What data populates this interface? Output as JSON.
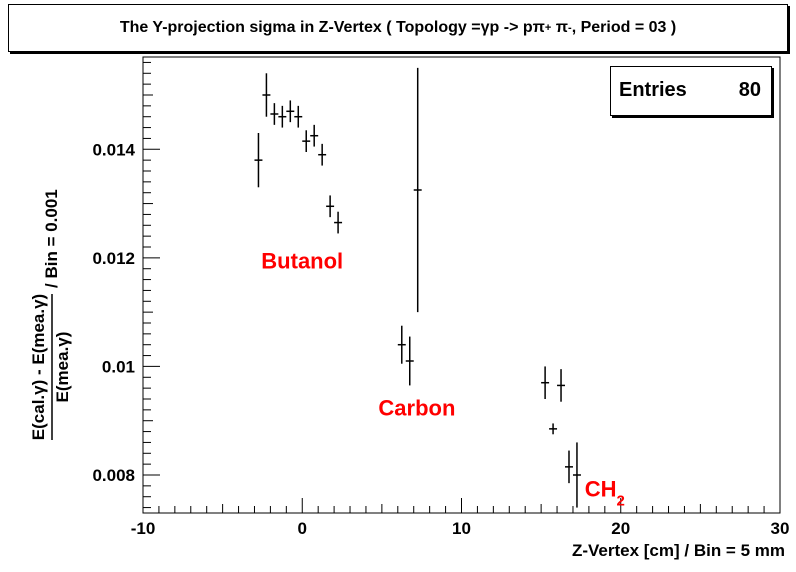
{
  "title": {
    "text_a": "The Y-projection sigma in Z-Vertex ( Topology = ",
    "gamma": "γ",
    "text_b": " p -> p ",
    "pi": "π",
    "plus": "+",
    "minus": "-",
    "text_c": ", Period = 03 )"
  },
  "stats": {
    "label": "Entries",
    "value": "80"
  },
  "chart_data": {
    "type": "scatter",
    "xlabel": "Z-Vertex [cm] / Bin = 5 mm",
    "ylabel": {
      "numerator": "E(cal.γ) - E(mea.γ)",
      "denominator": "E(mea.γ)",
      "suffix": "/ Bin = 0.001"
    },
    "xlim": [
      -10,
      30
    ],
    "ylim": [
      0.0073,
      0.0157
    ],
    "xticks": [
      -10,
      0,
      10,
      20,
      30
    ],
    "yticks": [
      0.008,
      0.01,
      0.012,
      0.014
    ],
    "ytick_labels": [
      "0.008",
      "0.01",
      "0.012",
      "0.014"
    ],
    "grid": false,
    "marker_color": "#000000",
    "annotation_color": "#ff0000",
    "annotations": [
      {
        "text": "Butanol",
        "x": 0.0,
        "y": 0.0118
      },
      {
        "text": "Carbon",
        "x": 7.2,
        "y": 0.0091
      },
      {
        "text": "CH",
        "sub": "2",
        "x": 19.0,
        "y": 0.0076
      }
    ],
    "points": [
      {
        "x": -2.75,
        "y": 0.0138,
        "yerr": 0.0005
      },
      {
        "x": -2.25,
        "y": 0.015,
        "yerr": 0.0004
      },
      {
        "x": -1.75,
        "y": 0.01465,
        "yerr": 0.0002
      },
      {
        "x": -1.25,
        "y": 0.0146,
        "yerr": 0.0002
      },
      {
        "x": -0.75,
        "y": 0.0147,
        "yerr": 0.0002
      },
      {
        "x": -0.25,
        "y": 0.0146,
        "yerr": 0.0002
      },
      {
        "x": 0.25,
        "y": 0.01415,
        "yerr": 0.0002
      },
      {
        "x": 0.75,
        "y": 0.01425,
        "yerr": 0.0002
      },
      {
        "x": 1.25,
        "y": 0.0139,
        "yerr": 0.0002
      },
      {
        "x": 1.75,
        "y": 0.01295,
        "yerr": 0.0002
      },
      {
        "x": 2.25,
        "y": 0.01265,
        "yerr": 0.0002
      },
      {
        "x": 6.25,
        "y": 0.0104,
        "yerr": 0.00035
      },
      {
        "x": 6.75,
        "y": 0.0101,
        "yerr": 0.00045
      },
      {
        "x": 7.25,
        "y": 0.01325,
        "yerr": 0.00225
      },
      {
        "x": 15.25,
        "y": 0.0097,
        "yerr": 0.0003
      },
      {
        "x": 15.75,
        "y": 0.00885,
        "yerr": 0.0001
      },
      {
        "x": 16.25,
        "y": 0.00965,
        "yerr": 0.0003
      },
      {
        "x": 16.75,
        "y": 0.00815,
        "yerr": 0.0003
      },
      {
        "x": 17.25,
        "y": 0.008,
        "yerr": 0.0006
      }
    ]
  }
}
